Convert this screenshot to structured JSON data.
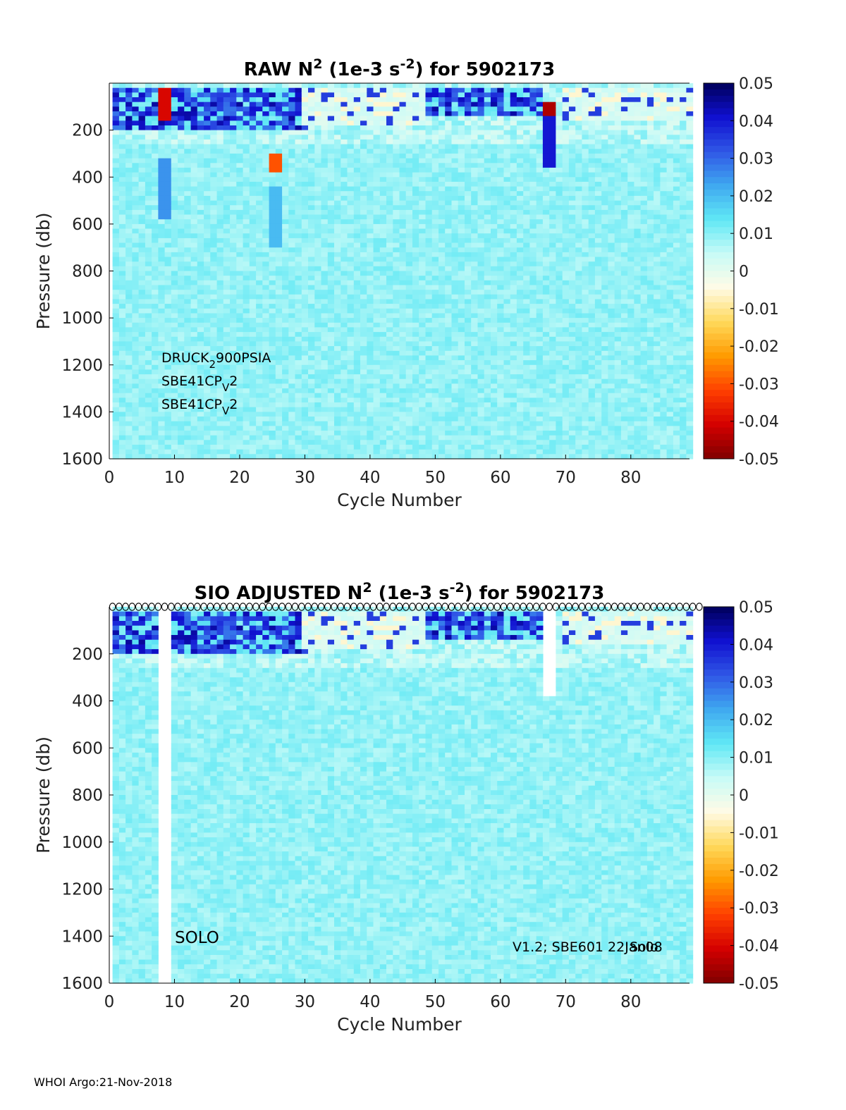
{
  "footer": "WHOI Argo:21-Nov-2018",
  "colorbar": {
    "ticks": [
      "0.05",
      "0.04",
      "0.03",
      "0.02",
      "0.01",
      "0",
      "-0.01",
      "-0.02",
      "-0.03",
      "-0.04",
      "-0.05"
    ],
    "range": [
      -0.05,
      0.05
    ],
    "colors": [
      "#800000",
      "#d40000",
      "#ff4000",
      "#ff9a00",
      "#ffd95a",
      "#fffbe6",
      "#c8fbf7",
      "#60e8f5",
      "#3fa8f0",
      "#2f56e6",
      "#1010d0",
      "#00005a"
    ]
  },
  "chart_data": [
    {
      "type": "heatmap",
      "title_parts": {
        "pre": "RAW N",
        "sup1": "2",
        "mid": " (1e-3 s",
        "sup2": "-2",
        "post": ") for 5902173"
      },
      "xlabel": "Cycle Number",
      "ylabel": "Pressure (db)",
      "xlim": [
        0,
        89
      ],
      "ylim": [
        0,
        1600
      ],
      "y_reversed": true,
      "xticks": [
        0,
        10,
        20,
        30,
        40,
        50,
        60,
        70,
        80
      ],
      "yticks": [
        200,
        400,
        600,
        800,
        1000,
        1200,
        1400,
        1600
      ],
      "clim": [
        -0.05,
        0.05
      ],
      "annotations": [
        {
          "parts": [
            "DRUCK",
            "2",
            "900PSIA"
          ],
          "sub_index": 1
        },
        {
          "parts": [
            "SBE41CP",
            "V",
            "2"
          ],
          "sub_index": 1
        },
        {
          "parts": [
            "SBE41CP",
            "V",
            "2"
          ],
          "sub_index": 1
        }
      ],
      "features": [
        {
          "kind": "strong_upper_stratification",
          "cycles": [
            1,
            30
          ],
          "pressure": [
            20,
            200
          ],
          "value": 0.045
        },
        {
          "kind": "strong_upper_stratification",
          "cycles": [
            48,
            66
          ],
          "pressure": [
            20,
            130
          ],
          "value": 0.045
        },
        {
          "kind": "weak_upper_layer",
          "cycles": [
            30,
            48
          ],
          "pressure": [
            20,
            180
          ],
          "value": 0.002
        },
        {
          "kind": "weak_upper_layer",
          "cycles": [
            70,
            89
          ],
          "pressure": [
            20,
            150
          ],
          "value": 0.002
        },
        {
          "kind": "spike",
          "cycle": 8.5,
          "pressure": [
            20,
            150
          ],
          "value": -0.04
        },
        {
          "kind": "column",
          "cycle": 8.5,
          "pressure": [
            320,
            580
          ],
          "value": 0.025
        },
        {
          "kind": "spike",
          "cycle": 25.5,
          "pressure": [
            310,
            380
          ],
          "value": -0.03
        },
        {
          "kind": "column",
          "cycle": 25.5,
          "pressure": [
            450,
            700
          ],
          "value": 0.02
        },
        {
          "kind": "spike",
          "cycle": 67.5,
          "pressure": [
            80,
            140
          ],
          "value": -0.045
        },
        {
          "kind": "column",
          "cycle": 67.5,
          "pressure": [
            140,
            350
          ],
          "value": 0.04
        },
        {
          "kind": "deep_background",
          "pressure": [
            250,
            1600
          ],
          "value": 0.008
        }
      ]
    },
    {
      "type": "heatmap",
      "title_parts": {
        "pre": "SIO  ADJUSTED N",
        "sup1": "2",
        "mid": " (1e-3 s",
        "sup2": "-2",
        "post": ") for 5902173"
      },
      "xlabel": "Cycle Number",
      "ylabel": "Pressure (db)",
      "xlim": [
        0,
        89
      ],
      "ylim": [
        0,
        1600
      ],
      "y_reversed": true,
      "xticks": [
        0,
        10,
        20,
        30,
        40,
        50,
        60,
        70,
        80
      ],
      "yticks": [
        200,
        400,
        600,
        800,
        1000,
        1200,
        1400,
        1600
      ],
      "clim": [
        -0.05,
        0.05
      ],
      "annotation_left": "SOLO",
      "annotation_right_a": "V1.2; SBE601 22Jan08",
      "annotation_right_b": "Solo",
      "qc_marker_cycles": [
        1,
        89
      ],
      "missing_cycles": [
        8.5
      ],
      "gaps": [
        {
          "cycle": 67.5,
          "pressure": [
            0,
            380
          ]
        }
      ],
      "features": [
        {
          "kind": "strong_upper_stratification",
          "cycles": [
            1,
            30
          ],
          "pressure": [
            20,
            200
          ],
          "value": 0.045
        },
        {
          "kind": "strong_upper_stratification",
          "cycles": [
            48,
            66
          ],
          "pressure": [
            20,
            130
          ],
          "value": 0.045
        },
        {
          "kind": "weak_upper_layer",
          "cycles": [
            30,
            48
          ],
          "pressure": [
            20,
            180
          ],
          "value": 0.002
        },
        {
          "kind": "weak_upper_layer",
          "cycles": [
            70,
            89
          ],
          "pressure": [
            20,
            150
          ],
          "value": 0.002
        },
        {
          "kind": "deep_background",
          "pressure": [
            250,
            1600
          ],
          "value": 0.008
        }
      ]
    }
  ]
}
